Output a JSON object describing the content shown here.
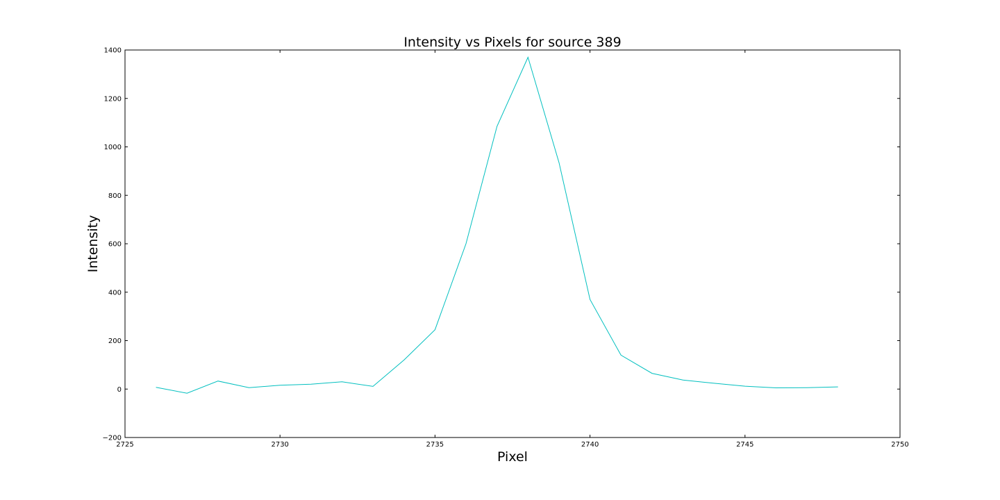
{
  "chart_data": {
    "type": "line",
    "title": "Intensity vs Pixels for source 389",
    "xlabel": "Pixel",
    "ylabel": "Intensity",
    "xlim": [
      2725,
      2750
    ],
    "ylim": [
      -200,
      1400
    ],
    "xticks": [
      2725,
      2730,
      2735,
      2740,
      2745,
      2750
    ],
    "yticks": [
      -200,
      0,
      200,
      400,
      600,
      800,
      1000,
      1200,
      1400
    ],
    "grid": false,
    "series": [
      {
        "color": "#00bfbf",
        "x": [
          2726,
          2727,
          2728,
          2729,
          2730,
          2731,
          2732,
          2733,
          2734,
          2735,
          2736,
          2737,
          2738,
          2739,
          2740,
          2741,
          2742,
          2743,
          2744,
          2745,
          2746,
          2747,
          2748
        ],
        "y": [
          7,
          -17,
          33,
          6,
          16,
          20,
          30,
          11,
          120,
          245,
          600,
          1085,
          1370,
          935,
          370,
          140,
          65,
          37,
          24,
          12,
          5,
          6,
          9
        ]
      }
    ]
  }
}
